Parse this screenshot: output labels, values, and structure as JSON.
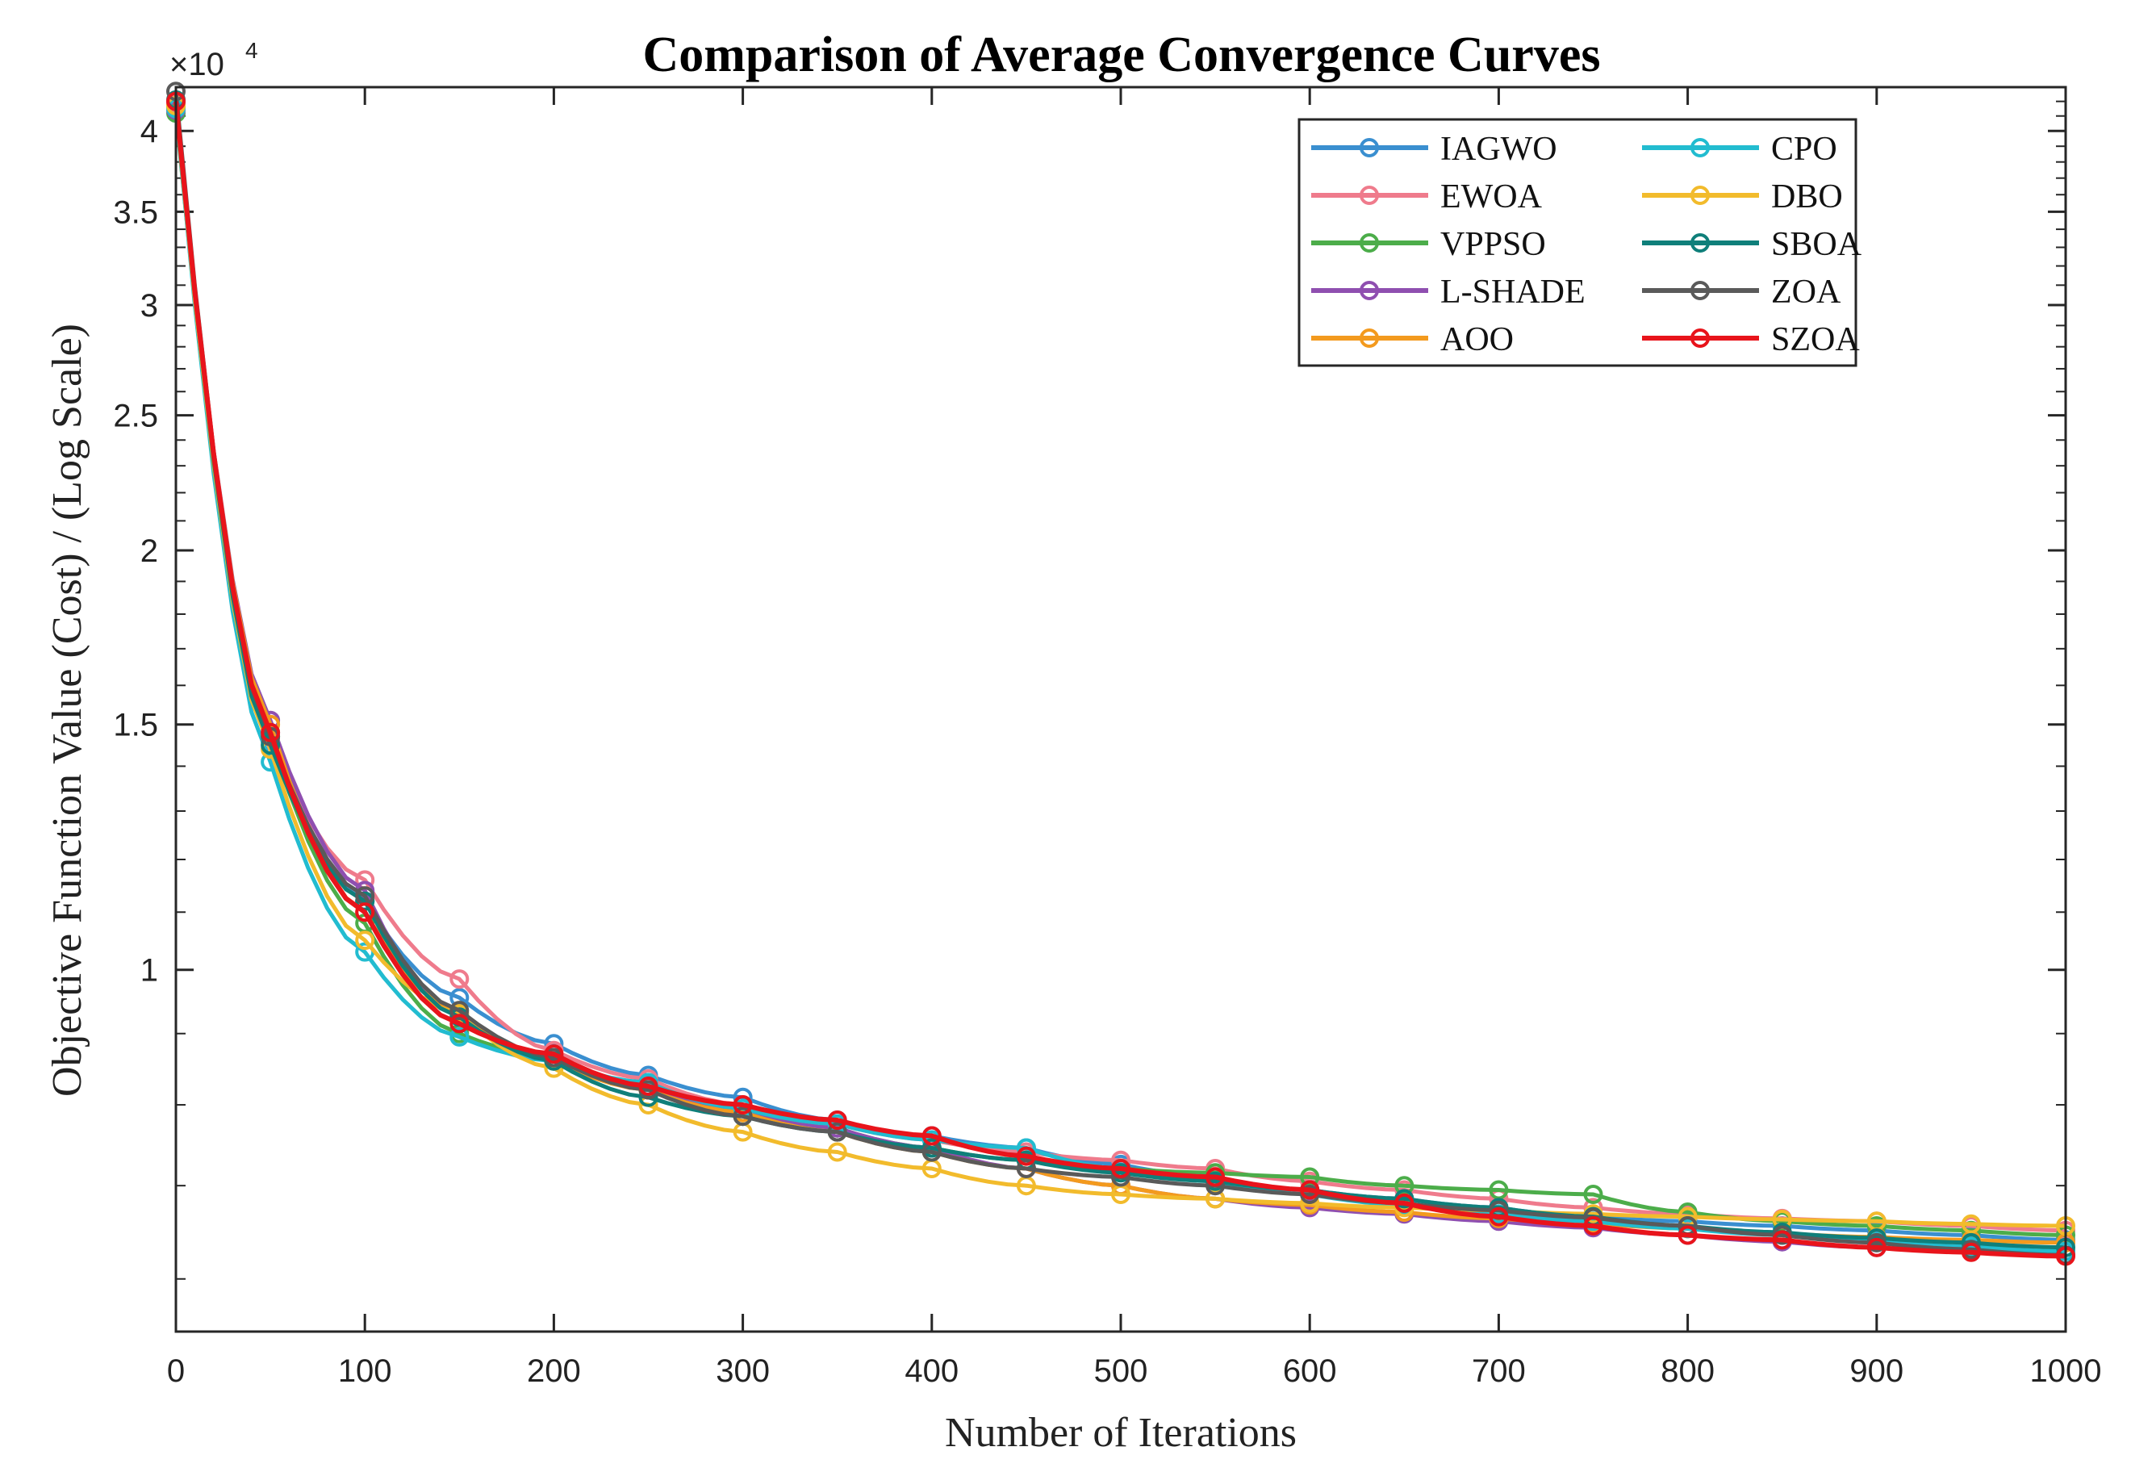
{
  "chart_data": {
    "type": "line",
    "title": "Comparison of Average Convergence Curves",
    "xlabel": "Number of Iterations",
    "ylabel": "Objective Function Value (Cost) / (Log Scale)",
    "y_exponent_prefix": "×10",
    "y_exponent": "4",
    "xlim": [
      0,
      1000
    ],
    "ylim": [
      0.55,
      4.3
    ],
    "yscale": "log",
    "x_ticks": [
      0,
      100,
      200,
      300,
      400,
      500,
      600,
      700,
      800,
      900,
      1000
    ],
    "x_tick_labels": [
      "0",
      "100",
      "200",
      "300",
      "400",
      "500",
      "600",
      "700",
      "800",
      "900",
      "1000"
    ],
    "y_ticks": [
      1,
      1.5,
      2,
      2.5,
      3,
      3.5,
      4
    ],
    "y_tick_labels": [
      "1",
      "1.5",
      "2",
      "2.5",
      "3",
      "3.5",
      "4"
    ],
    "legend_position": "top-right",
    "x": [
      0,
      50,
      100,
      150,
      200,
      250,
      300,
      350,
      400,
      450,
      500,
      550,
      600,
      650,
      700,
      750,
      800,
      850,
      900,
      950,
      1000
    ],
    "series": [
      {
        "name": "IAGWO",
        "color": "#3a8fd0",
        "values": [
          4.2,
          1.48,
          1.12,
          0.955,
          0.885,
          0.84,
          0.81,
          0.78,
          0.76,
          0.745,
          0.725,
          0.71,
          0.695,
          0.685,
          0.675,
          0.665,
          0.66,
          0.655,
          0.65,
          0.645,
          0.64
        ]
      },
      {
        "name": "EWOA",
        "color": "#ef7b8c",
        "values": [
          4.18,
          1.46,
          1.16,
          0.985,
          0.875,
          0.835,
          0.8,
          0.775,
          0.755,
          0.74,
          0.73,
          0.72,
          0.705,
          0.695,
          0.685,
          0.675,
          0.668,
          0.663,
          0.66,
          0.655,
          0.65
        ]
      },
      {
        "name": "VPPSO",
        "color": "#4cad4a",
        "values": [
          4.12,
          1.47,
          1.08,
          0.9,
          0.865,
          0.82,
          0.79,
          0.77,
          0.745,
          0.73,
          0.72,
          0.715,
          0.71,
          0.7,
          0.695,
          0.69,
          0.67,
          0.66,
          0.655,
          0.65,
          0.645
        ]
      },
      {
        "name": "L-SHADE",
        "color": "#8f4fb0",
        "values": [
          4.14,
          1.51,
          1.14,
          0.925,
          0.865,
          0.825,
          0.79,
          0.77,
          0.745,
          0.72,
          0.7,
          0.685,
          0.675,
          0.668,
          0.66,
          0.653,
          0.645,
          0.638,
          0.632,
          0.628,
          0.624
        ]
      },
      {
        "name": "AOO",
        "color": "#f39a1e",
        "values": [
          4.16,
          1.5,
          1.1,
          0.93,
          0.86,
          0.82,
          0.79,
          0.765,
          0.74,
          0.72,
          0.7,
          0.685,
          0.678,
          0.67,
          0.663,
          0.658,
          0.652,
          0.647,
          0.643,
          0.64,
          0.637
        ]
      },
      {
        "name": "CPO",
        "color": "#22bcd0",
        "values": [
          4.15,
          1.41,
          1.03,
          0.895,
          0.86,
          0.83,
          0.795,
          0.775,
          0.755,
          0.745,
          0.72,
          0.705,
          0.69,
          0.678,
          0.668,
          0.66,
          0.652,
          0.645,
          0.638,
          0.633,
          0.628
        ]
      },
      {
        "name": "DBO",
        "color": "#f2bb2c",
        "values": [
          4.17,
          1.44,
          1.05,
          0.93,
          0.85,
          0.8,
          0.765,
          0.74,
          0.72,
          0.7,
          0.69,
          0.685,
          0.68,
          0.675,
          0.672,
          0.668,
          0.665,
          0.662,
          0.66,
          0.657,
          0.655
        ]
      },
      {
        "name": "SBOA",
        "color": "#0f7f7a",
        "values": [
          4.21,
          1.45,
          1.12,
          0.925,
          0.86,
          0.81,
          0.785,
          0.765,
          0.745,
          0.73,
          0.715,
          0.705,
          0.695,
          0.685,
          0.675,
          0.665,
          0.655,
          0.648,
          0.642,
          0.637,
          0.632
        ]
      },
      {
        "name": "ZOA",
        "color": "#5a5a5a",
        "values": [
          4.27,
          1.47,
          1.13,
          0.935,
          0.865,
          0.82,
          0.785,
          0.765,
          0.74,
          0.72,
          0.71,
          0.7,
          0.69,
          0.68,
          0.672,
          0.664,
          0.655,
          0.645,
          0.637,
          0.63,
          0.624
        ]
      },
      {
        "name": "SZOA",
        "color": "#e8141b",
        "values": [
          4.2,
          1.48,
          1.1,
          0.915,
          0.87,
          0.825,
          0.8,
          0.78,
          0.76,
          0.735,
          0.72,
          0.71,
          0.695,
          0.68,
          0.665,
          0.655,
          0.645,
          0.64,
          0.632,
          0.627,
          0.623
        ]
      }
    ]
  }
}
